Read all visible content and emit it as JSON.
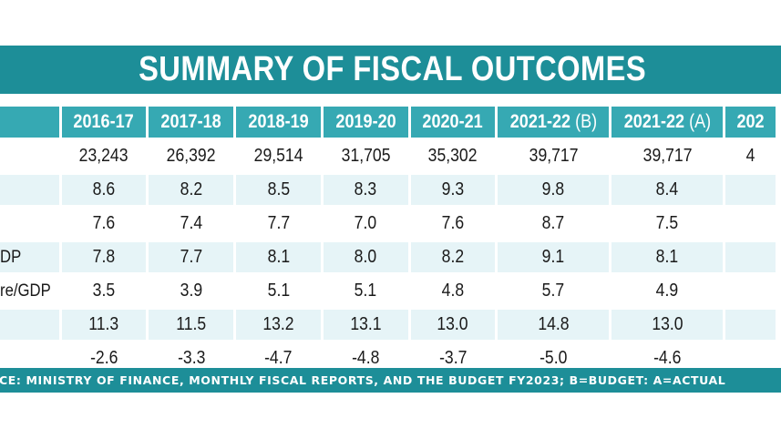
{
  "title": "SUMMARY OF FISCAL OUTCOMES",
  "source": "CE: MINISTRY OF FINANCE, MONTHLY FISCAL REPORTS, AND THE BUDGET FY2023; B=BUDGET: A=ACTUAL",
  "colors": {
    "band": "#1d8e98",
    "header_cells": "#36a9b3",
    "row_tint": "#e6f4f7",
    "text": "#1a1a1a"
  },
  "chart_data": {
    "type": "table",
    "title": "SUMMARY OF FISCAL OUTCOMES",
    "columns": [
      {
        "year": "2016-17",
        "suffix": ""
      },
      {
        "year": "2017-18",
        "suffix": ""
      },
      {
        "year": "2018-19",
        "suffix": ""
      },
      {
        "year": "2019-20",
        "suffix": ""
      },
      {
        "year": "2020-21",
        "suffix": ""
      },
      {
        "year": "2021-22",
        "suffix": " (B)"
      },
      {
        "year": "2021-22",
        "suffix": " (A)"
      },
      {
        "year": "202",
        "suffix": ""
      }
    ],
    "rows": [
      {
        "label": "",
        "tinted": false,
        "values": [
          "23,243",
          "26,392",
          "29,514",
          "31,705",
          "35,302",
          "39,717",
          "39,717",
          "4"
        ]
      },
      {
        "label": "",
        "tinted": true,
        "values": [
          "8.6",
          "8.2",
          "8.5",
          "8.3",
          "9.3",
          "9.8",
          "8.4",
          ""
        ]
      },
      {
        "label": "",
        "tinted": false,
        "values": [
          "7.6",
          "7.4",
          "7.7",
          "7.0",
          "7.6",
          "8.7",
          "7.5",
          ""
        ]
      },
      {
        "label": "DP",
        "tinted": true,
        "values": [
          "7.8",
          "7.7",
          "8.1",
          "8.0",
          "8.2",
          "9.1",
          "8.1",
          ""
        ]
      },
      {
        "label": "re/GDP",
        "tinted": false,
        "values": [
          "3.5",
          "3.9",
          "5.1",
          "5.1",
          "4.8",
          "5.7",
          "4.9",
          ""
        ]
      },
      {
        "label": "",
        "tinted": true,
        "values": [
          "11.3",
          "11.5",
          "13.2",
          "13.1",
          "13.0",
          "14.8",
          "13.0",
          ""
        ]
      },
      {
        "label": "",
        "tinted": false,
        "values": [
          "-2.6",
          "-3.3",
          "-4.7",
          "-4.8",
          "-3.7",
          "-5.0",
          "-4.6",
          ""
        ]
      }
    ]
  }
}
